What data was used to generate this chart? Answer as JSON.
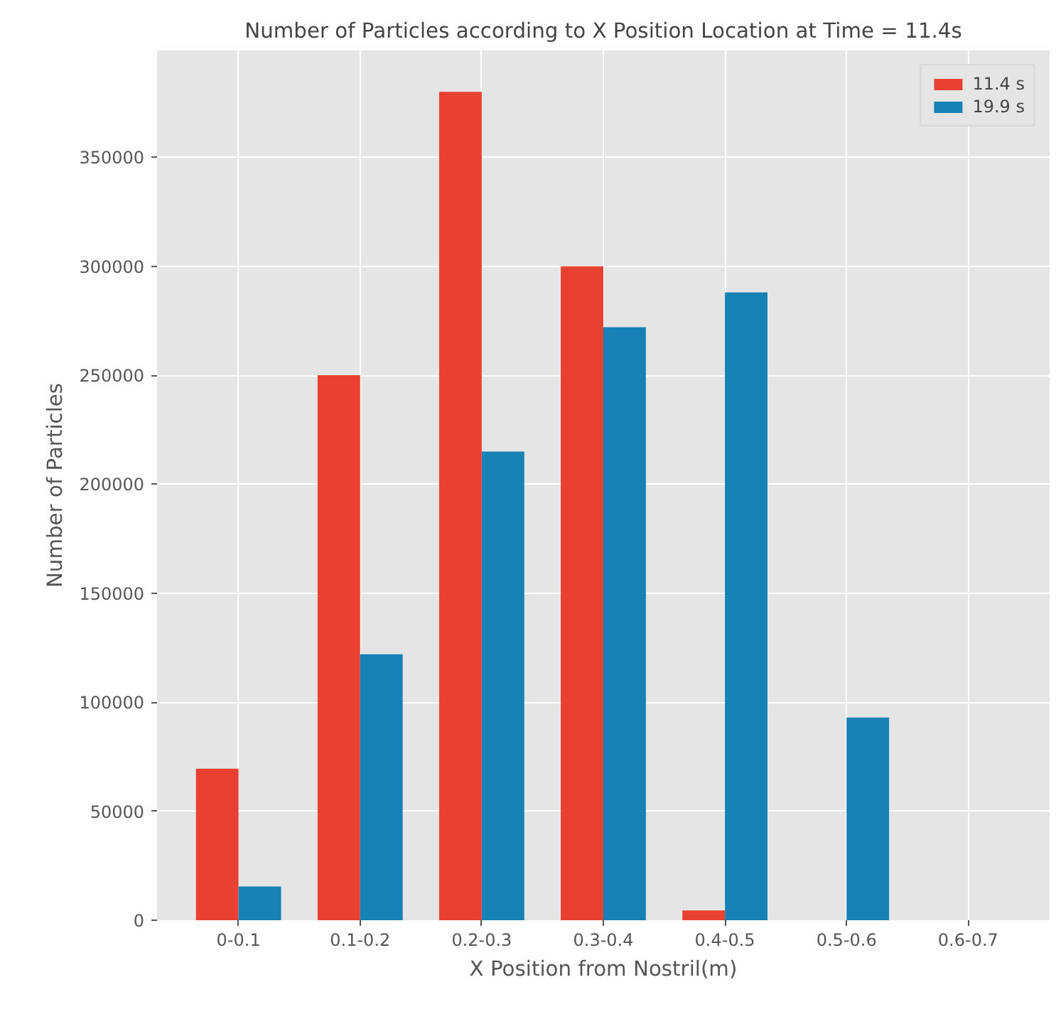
{
  "chart_data": {
    "type": "bar",
    "title": "Number of Particles according to X Position Location at Time = 11.4s",
    "xlabel": "X Position from Nostril(m)",
    "ylabel": "Number of Particles",
    "categories": [
      "0-0.1",
      "0.1-0.2",
      "0.2-0.3",
      "0.3-0.4",
      "0.4-0.5",
      "0.5-0.6",
      "0.6-0.7"
    ],
    "series": [
      {
        "name": "11.4 s",
        "color": "#e84132",
        "values": [
          69500,
          250000,
          380000,
          300000,
          4500,
          0,
          0
        ]
      },
      {
        "name": "19.9 s",
        "color": "#1781b5",
        "values": [
          15500,
          122000,
          215000,
          272000,
          288000,
          93000,
          0
        ]
      }
    ],
    "ylim": [
      0,
      399000
    ],
    "yticks": [
      0,
      50000,
      100000,
      150000,
      200000,
      250000,
      300000,
      350000
    ],
    "grid": true,
    "legend": "top right"
  }
}
